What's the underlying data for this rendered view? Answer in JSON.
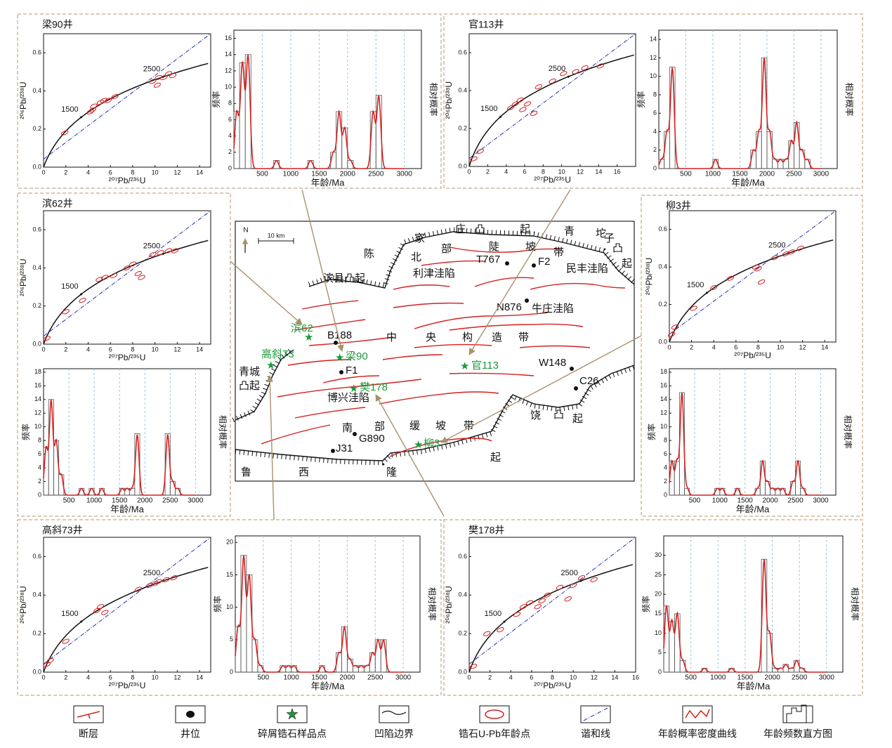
{
  "panels": [
    {
      "title": "梁90井",
      "concordia": {
        "xlim": [
          0,
          15
        ],
        "xticks": [
          0,
          2,
          4,
          6,
          8,
          10,
          12,
          14
        ],
        "ylim": [
          0,
          0.7
        ],
        "yticks": [
          {
            "value": 0,
            "label": "0.0"
          },
          0.2,
          0.4,
          0.6
        ],
        "x_label": "²⁰⁷Pb/²³⁵U",
        "y_label": "²⁰⁶Pb/²³⁸U",
        "age_labels": [
          1500,
          2500
        ],
        "points": [
          [
            1.9,
            0.18
          ],
          [
            4.2,
            0.29
          ],
          [
            4.4,
            0.3
          ],
          [
            4.5,
            0.32
          ],
          [
            5.1,
            0.34
          ],
          [
            5.4,
            0.35
          ],
          [
            5.8,
            0.35
          ],
          [
            6.4,
            0.37
          ],
          [
            9.8,
            0.45
          ],
          [
            10.3,
            0.47
          ],
          [
            10.8,
            0.47
          ],
          [
            11.2,
            0.49
          ],
          [
            11.6,
            0.48
          ],
          [
            10.2,
            0.43
          ]
        ]
      },
      "histogram": {
        "xlim": [
          0,
          3300
        ],
        "xticks": [
          500,
          1000,
          1500,
          2000,
          2500,
          3000
        ],
        "ylim": [
          0,
          17
        ],
        "yticks": [
          0,
          2,
          4,
          6,
          8,
          10,
          12,
          14,
          16
        ],
        "x_label": "年龄/Ma",
        "y_label": "频率",
        "y2_label": "相对概率",
        "bins": [
          0,
          100,
          200,
          300,
          400,
          500,
          600,
          700,
          800,
          900,
          1000,
          1100,
          1200,
          1300,
          1400,
          1500,
          1600,
          1700,
          1800,
          1900,
          2000,
          2100,
          2200,
          2300,
          2400,
          2500,
          2600,
          2700,
          2800,
          2900,
          3000
        ],
        "counts": [
          7,
          13,
          14,
          0,
          0,
          0,
          0,
          1,
          0,
          0,
          0,
          0,
          0,
          1,
          0,
          0,
          0,
          2,
          7,
          5,
          1,
          0,
          0,
          0,
          7,
          9,
          0,
          0,
          0,
          0
        ]
      }
    },
    {
      "title": "官113井",
      "concordia": {
        "xlim": [
          0,
          18
        ],
        "xticks": [
          0,
          2,
          4,
          6,
          8,
          10,
          12,
          14,
          16
        ],
        "ylim": [
          0,
          0.7
        ],
        "yticks": [
          {
            "value": 0,
            "label": "0.0"
          },
          0.2,
          0.4,
          0.6
        ],
        "x_label": "²⁰⁷Pb/²³⁵U",
        "y_label": "²⁰⁶Pb/²³⁸U",
        "age_labels": [
          1500,
          2500
        ],
        "points": [
          [
            0.5,
            0.04
          ],
          [
            1.2,
            0.08
          ],
          [
            4.5,
            0.31
          ],
          [
            5,
            0.33
          ],
          [
            5.5,
            0.35
          ],
          [
            6.3,
            0.33
          ],
          [
            7.5,
            0.42
          ],
          [
            9,
            0.45
          ],
          [
            10.2,
            0.49
          ],
          [
            11.5,
            0.5
          ],
          [
            12.5,
            0.52
          ],
          [
            14.2,
            0.53
          ],
          [
            5.8,
            0.3
          ],
          [
            7,
            0.28
          ]
        ]
      },
      "histogram": {
        "xlim": [
          0,
          3300
        ],
        "xticks": [
          500,
          1000,
          1500,
          2000,
          2500,
          3000
        ],
        "ylim": [
          0,
          15
        ],
        "yticks": [
          0,
          2,
          4,
          6,
          8,
          10,
          12,
          14
        ],
        "x_label": "年龄/Ma",
        "y_label": "频率",
        "y2_label": "相对概率",
        "bins": [
          0,
          100,
          200,
          300,
          400,
          500,
          600,
          700,
          800,
          900,
          1000,
          1100,
          1200,
          1300,
          1400,
          1500,
          1600,
          1700,
          1800,
          1900,
          2000,
          2100,
          2200,
          2300,
          2400,
          2500,
          2600,
          2700,
          2800,
          2900,
          3000
        ],
        "counts": [
          1,
          4,
          11,
          0,
          0,
          0,
          0,
          0,
          0,
          0,
          1,
          0,
          0,
          0,
          0,
          0,
          0,
          2,
          4,
          12,
          4,
          1,
          1,
          1,
          3,
          5,
          2,
          1,
          0,
          0
        ]
      }
    },
    {
      "title": "滨62井",
      "concordia": {
        "xlim": [
          0,
          15
        ],
        "xticks": [
          0,
          2,
          4,
          6,
          8,
          10,
          12,
          14
        ],
        "ylim": [
          0,
          0.7
        ],
        "yticks": [
          {
            "value": 0,
            "label": "0.0"
          },
          0.2,
          0.4,
          0.6
        ],
        "x_label": "²⁰⁷Pb/²³⁵U",
        "y_label": "²⁰⁶Pb/²³⁸U",
        "age_labels": [
          1500,
          2500
        ],
        "points": [
          [
            0.3,
            0.03
          ],
          [
            2,
            0.17
          ],
          [
            5,
            0.34
          ],
          [
            5.5,
            0.35
          ],
          [
            6.3,
            0.36
          ],
          [
            7.5,
            0.4
          ],
          [
            8,
            0.42
          ],
          [
            8.5,
            0.37
          ],
          [
            8.8,
            0.35
          ],
          [
            9.8,
            0.47
          ],
          [
            10.5,
            0.48
          ],
          [
            11.2,
            0.49
          ],
          [
            11.8,
            0.49
          ],
          [
            3.5,
            0.23
          ]
        ]
      },
      "histogram": {
        "xlim": [
          0,
          3300
        ],
        "xticks": [
          500,
          1000,
          1500,
          2000,
          2500,
          3000
        ],
        "ylim": [
          0,
          18.5
        ],
        "yticks": [
          0,
          2,
          4,
          6,
          8,
          10,
          12,
          14,
          16,
          18
        ],
        "x_label": "年龄/Ma",
        "y_label": "频率",
        "y2_label": "相对概率",
        "bins": [
          0,
          100,
          200,
          300,
          400,
          500,
          600,
          700,
          800,
          900,
          1000,
          1100,
          1200,
          1300,
          1400,
          1500,
          1600,
          1700,
          1800,
          1900,
          2000,
          2100,
          2200,
          2300,
          2400,
          2500,
          2600,
          2700,
          2800,
          2900,
          3000
        ],
        "counts": [
          7,
          14,
          8,
          3,
          0,
          0,
          0,
          1,
          0,
          1,
          0,
          1,
          0,
          0,
          0,
          1,
          1,
          1,
          9,
          0,
          0,
          0,
          0,
          0,
          9,
          2,
          1,
          0,
          0,
          0
        ]
      }
    },
    {
      "title": "柳3井",
      "concordia": {
        "xlim": [
          0,
          15
        ],
        "xticks": [
          0,
          2,
          4,
          6,
          8,
          10,
          12,
          14
        ],
        "ylim": [
          0,
          0.7
        ],
        "yticks": [
          {
            "value": 0,
            "label": "0.0"
          },
          0.2,
          0.4,
          0.6
        ],
        "x_label": "²⁰⁷Pb/²³⁵U",
        "y_label": "²⁰⁶Pb/²³⁸U",
        "age_labels": [
          1500,
          2500
        ],
        "points": [
          [
            0.2,
            0.04
          ],
          [
            0.5,
            0.08
          ],
          [
            2.2,
            0.18
          ],
          [
            4,
            0.29
          ],
          [
            5.5,
            0.34
          ],
          [
            7.8,
            0.4
          ],
          [
            8,
            0.39
          ],
          [
            9.5,
            0.45
          ],
          [
            10.5,
            0.47
          ],
          [
            11,
            0.48
          ],
          [
            11.8,
            0.5
          ],
          [
            8.3,
            0.32
          ]
        ]
      },
      "histogram": {
        "xlim": [
          0,
          3300
        ],
        "xticks": [
          500,
          1000,
          1500,
          2000,
          2500,
          3000
        ],
        "ylim": [
          0,
          18.5
        ],
        "yticks": [
          0,
          2,
          4,
          6,
          8,
          10,
          12,
          14,
          16,
          18
        ],
        "x_label": "年龄/Ma",
        "y_label": "频率",
        "y2_label": "相对概率",
        "bins": [
          0,
          100,
          200,
          300,
          400,
          500,
          600,
          700,
          800,
          900,
          1000,
          1100,
          1200,
          1300,
          1400,
          1500,
          1600,
          1700,
          1800,
          1900,
          2000,
          2100,
          2200,
          2300,
          2400,
          2500,
          2600,
          2700,
          2800,
          2900,
          3000
        ],
        "counts": [
          5,
          5,
          15,
          1,
          0,
          0,
          0,
          0,
          0,
          1,
          1,
          0,
          0,
          1,
          0,
          0,
          0,
          1,
          5,
          2,
          1,
          1,
          1,
          0,
          2,
          5,
          1,
          0,
          0,
          0
        ]
      }
    },
    {
      "title": "高斜73井",
      "concordia": {
        "xlim": [
          0,
          15
        ],
        "xticks": [
          0,
          2,
          4,
          6,
          8,
          10,
          12,
          14
        ],
        "ylim": [
          0,
          0.7
        ],
        "yticks": [
          {
            "value": 0,
            "label": "0.0"
          },
          0.2,
          0.4,
          0.6
        ],
        "x_label": "²⁰⁷Pb/²³⁵U",
        "y_label": "²⁰⁶Pb/²³⁸U",
        "age_labels": [
          1500,
          2500
        ],
        "points": [
          [
            0.3,
            0.04
          ],
          [
            0.6,
            0.06
          ],
          [
            2,
            0.16
          ],
          [
            4.8,
            0.32
          ],
          [
            5.1,
            0.34
          ],
          [
            5.5,
            0.31
          ],
          [
            8.5,
            0.43
          ],
          [
            9.5,
            0.45
          ],
          [
            10.3,
            0.47
          ],
          [
            11,
            0.48
          ],
          [
            11.7,
            0.49
          ],
          [
            10,
            0.46
          ]
        ]
      },
      "histogram": {
        "xlim": [
          0,
          3300
        ],
        "xticks": [
          500,
          1000,
          1500,
          2000,
          2500,
          3000
        ],
        "ylim": [
          0,
          21
        ],
        "yticks": [
          0,
          5,
          10,
          15,
          20
        ],
        "x_label": "年龄/Ma",
        "y_label": "频率",
        "y2_label": "相对概率",
        "bins": [
          0,
          100,
          200,
          300,
          400,
          500,
          600,
          700,
          800,
          900,
          1000,
          1100,
          1200,
          1300,
          1400,
          1500,
          1600,
          1700,
          1800,
          1900,
          2000,
          2100,
          2200,
          2300,
          2400,
          2500,
          2600,
          2700,
          2800,
          2900,
          3000
        ],
        "counts": [
          7,
          18,
          15,
          5,
          1,
          0,
          0,
          0,
          1,
          1,
          1,
          0,
          0,
          0,
          0,
          1,
          0,
          0,
          3,
          7,
          2,
          1,
          1,
          1,
          3,
          5,
          5,
          0,
          0,
          0
        ]
      }
    },
    {
      "title": "樊178井",
      "concordia": {
        "xlim": [
          0,
          16
        ],
        "xticks": [
          0,
          2,
          4,
          6,
          8,
          10,
          12,
          14,
          16
        ],
        "ylim": [
          0,
          0.7
        ],
        "yticks": [
          {
            "value": 0,
            "label": "0.0"
          },
          0.2,
          0.4,
          0.6
        ],
        "x_label": "²⁰⁷Pb/²³⁵U",
        "y_label": "²⁰⁶Pb/²³⁸U",
        "age_labels": [
          1500,
          2500
        ],
        "points": [
          [
            0.4,
            0.03
          ],
          [
            1.7,
            0.2
          ],
          [
            3,
            0.22
          ],
          [
            4.6,
            0.3
          ],
          [
            5.2,
            0.34
          ],
          [
            5.8,
            0.36
          ],
          [
            6.6,
            0.34
          ],
          [
            7.5,
            0.4
          ],
          [
            8.7,
            0.44
          ],
          [
            10,
            0.45
          ],
          [
            10.8,
            0.49
          ],
          [
            12,
            0.48
          ],
          [
            9.5,
            0.38
          ],
          [
            7,
            0.37
          ]
        ]
      },
      "histogram": {
        "xlim": [
          0,
          3300
        ],
        "xticks": [
          500,
          1000,
          1500,
          2000,
          2500,
          3000
        ],
        "ylim": [
          0,
          35
        ],
        "yticks": [
          0,
          5,
          10,
          15,
          20,
          25,
          30
        ],
        "x_label": "年龄/Ma",
        "y_label": "频率",
        "y2_label": "相对概率",
        "bins": [
          0,
          100,
          200,
          300,
          400,
          500,
          600,
          700,
          800,
          900,
          1000,
          1100,
          1200,
          1300,
          1400,
          1500,
          1600,
          1700,
          1800,
          1900,
          2000,
          2100,
          2200,
          2300,
          2400,
          2500,
          2600,
          2700,
          2800,
          2900,
          3000
        ],
        "counts": [
          17,
          13,
          15,
          3,
          0,
          0,
          0,
          1,
          0,
          0,
          0,
          0,
          1,
          0,
          0,
          0,
          0,
          0,
          29,
          10,
          1,
          1,
          2,
          1,
          3,
          1,
          0,
          0,
          0,
          0
        ]
      }
    }
  ],
  "map": {
    "north": "N",
    "scale": "10 km",
    "labels": [
      "陈",
      "家",
      "庄",
      "凸",
      "北",
      "部",
      "陡",
      "起",
      "坡",
      "青",
      "带",
      "坨",
      "子",
      "凸",
      "起",
      "利津洼陷",
      "民丰洼陷",
      "滨县凸起",
      "中",
      "央",
      "构",
      "造",
      "带",
      "牛庄洼陷",
      "青城",
      "凸起",
      "博兴洼陷",
      "南",
      "部",
      "缓",
      "坡",
      "带",
      "饶",
      "凸",
      "起",
      "鲁",
      "西",
      "隆",
      "起"
    ],
    "wells": [
      "T767",
      "F2",
      "N876",
      "B188",
      "F1",
      "W148",
      "C26",
      "G890",
      "J31"
    ],
    "samples": [
      "滨62",
      "高斜73",
      "梁90",
      "官113",
      "樊178",
      "柳3"
    ]
  },
  "legend": [
    "断层",
    "井位",
    "碎屑锆石样品点",
    "凹陷边界",
    "锆石U-Pb年龄点",
    "谐和线",
    "年龄概率密度曲线",
    "年龄频数直方图"
  ]
}
